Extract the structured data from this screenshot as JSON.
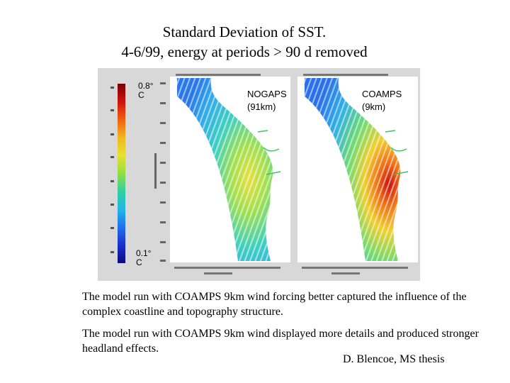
{
  "title": {
    "line1": "Standard Deviation of SST.",
    "line2": "4-6/99, energy at periods > 90 d removed"
  },
  "colorbar": {
    "max_label": "0.8° C",
    "min_label": "0.1° C",
    "stops": [
      "#7a0000",
      "#d01010",
      "#f06010",
      "#f0b820",
      "#e8e030",
      "#90e040",
      "#30d0a0",
      "#20b8e8",
      "#2070f0",
      "#1830d0",
      "#0a0a80"
    ]
  },
  "panels": {
    "nogaps": {
      "name": "NOGAPS",
      "resolution": "(91km)"
    },
    "coamps": {
      "name": "COAMPS",
      "resolution": "(9km)"
    }
  },
  "findings": {
    "p1": "The model run with COAMPS 9km wind forcing better captured  the influence of the complex coastline and topography structure.",
    "p2": "The model run with COAMPS 9km wind displayed more details and produced stronger headland effects."
  },
  "credit": "D. Blencoe, MS thesis"
}
